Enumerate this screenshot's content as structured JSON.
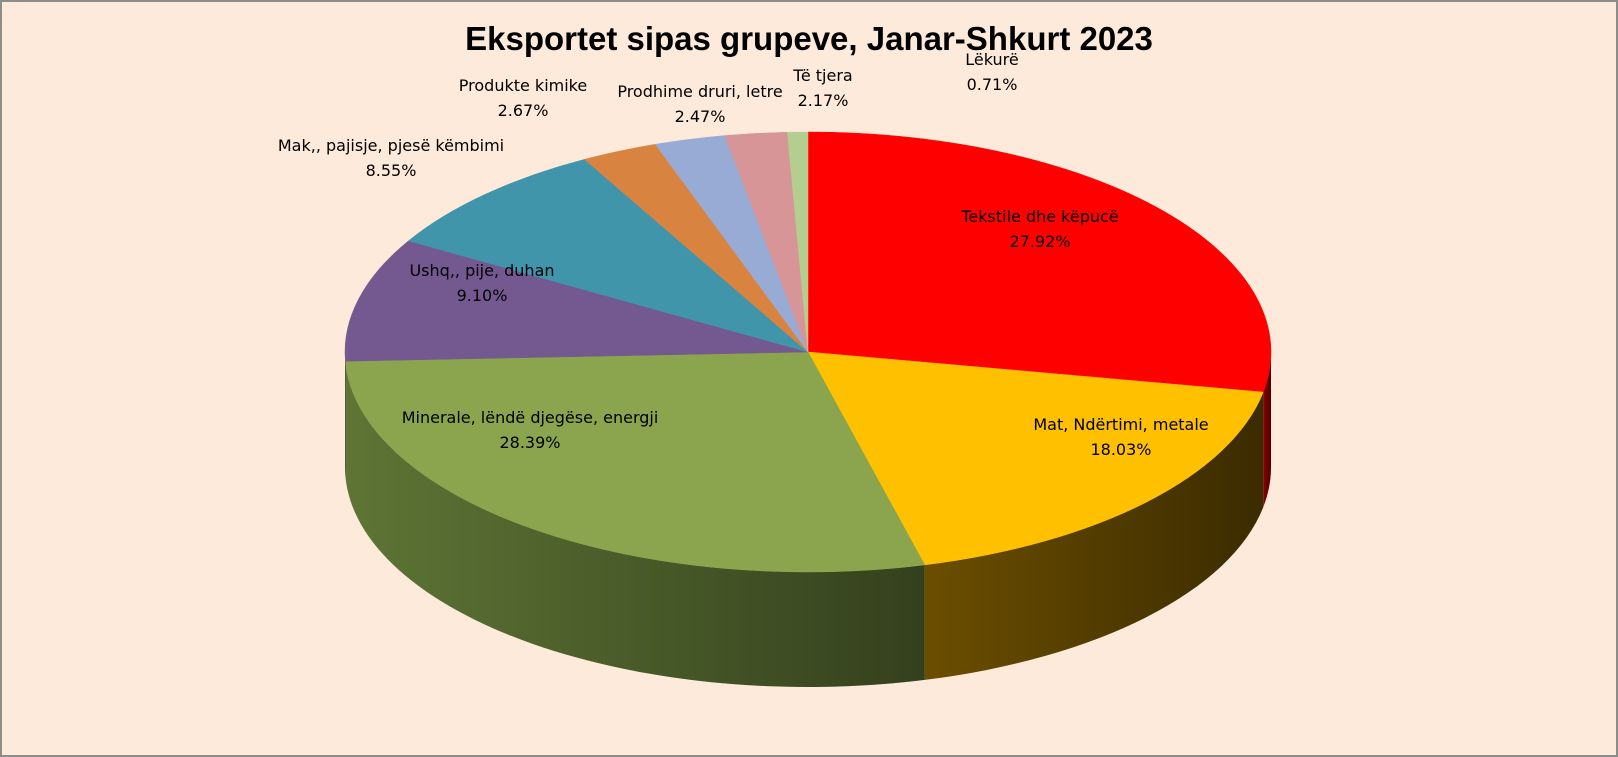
{
  "chart_data": {
    "type": "pie",
    "title": "Eksportet sipas grupeve, Janar-Shkurt 2023",
    "slices": [
      {
        "label": "Tekstile dhe këpucë",
        "value": 27.92,
        "value_label": "27.92%",
        "color": "#FF0000",
        "side_color": "#8B0000"
      },
      {
        "label": "Mat, Ndërtimi, metale",
        "value": 18.03,
        "value_label": "18.03%",
        "color": "#FFC000",
        "side_color": "#6B4E00"
      },
      {
        "label": "Minerale, lëndë djegëse, energji",
        "value": 28.39,
        "value_label": "28.39%",
        "color": "#8AA54E",
        "side_color": "#5E7535"
      },
      {
        "label": "Ushq,, pije, duhan",
        "value": 9.1,
        "value_label": "9.10%",
        "color": "#735990",
        "side_color": "#4A3A5E"
      },
      {
        "label": "Mak,, pajisje, pjesë këmbimi",
        "value": 8.55,
        "value_label": "8.55%",
        "color": "#4095AB",
        "side_color": "#2A6372"
      },
      {
        "label": "Produkte kimike",
        "value": 2.67,
        "value_label": "2.67%",
        "color": "#D98340",
        "side_color": "#8F552A"
      },
      {
        "label": "Prodhime druri, letre",
        "value": 2.47,
        "value_label": "2.47%",
        "color": "#97ABD5",
        "side_color": "#60708F"
      },
      {
        "label": "Të tjera",
        "value": 2.17,
        "value_label": "2.17%",
        "color": "#D79597",
        "side_color": "#8F6264"
      },
      {
        "label": "Lëkurë",
        "value": 0.71,
        "value_label": "0.71%",
        "color": "#B4CE90",
        "side_color": "#7A8C60"
      }
    ],
    "legend": "none",
    "data_labels": "category and percentage"
  }
}
